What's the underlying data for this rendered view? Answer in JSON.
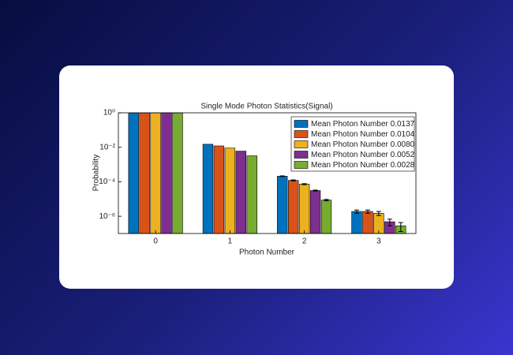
{
  "chart_data": {
    "type": "bar",
    "title": "Single Mode Photon Statistics(Signal)",
    "xlabel": "Photon Number",
    "ylabel": "Probability",
    "categories": [
      "0",
      "1",
      "2",
      "3"
    ],
    "log_y": true,
    "ylim": [
      1e-07,
      1
    ],
    "yticks": [
      {
        "value": 1,
        "label": "10⁰"
      },
      {
        "value": 0.01,
        "label": "10⁻²"
      },
      {
        "value": 0.0001,
        "label": "10⁻⁴"
      },
      {
        "value": 1e-06,
        "label": "10⁻⁶"
      }
    ],
    "legend": "upper right",
    "series": [
      {
        "name": "Mean Photon Number 0.0137",
        "color": "#0072bd",
        "values": [
          0.987,
          0.015,
          0.00021,
          1.9e-06
        ],
        "errors": [
          0,
          0,
          1e-05,
          4e-07
        ]
      },
      {
        "name": "Mean Photon Number 0.0104",
        "color": "#d95319",
        "values": [
          0.99,
          0.012,
          0.00012,
          1.9e-06
        ],
        "errors": [
          0,
          0,
          8e-06,
          4e-07
        ]
      },
      {
        "name": "Mean Photon Number 0.0080",
        "color": "#edb120",
        "values": [
          0.992,
          0.009,
          7.3e-05,
          1.5e-06
        ],
        "errors": [
          0,
          0,
          5e-06,
          4e-07
        ]
      },
      {
        "name": "Mean Photon Number 0.0052",
        "color": "#7e2f8e",
        "values": [
          0.995,
          0.006,
          3.1e-05,
          4.8e-07
        ],
        "errors": [
          0,
          0,
          2e-06,
          2e-07
        ]
      },
      {
        "name": "Mean Photon Number 0.0028",
        "color": "#77ac30",
        "values": [
          0.997,
          0.0032,
          8.7e-06,
          2.8e-07
        ],
        "errors": [
          0,
          0,
          8e-07,
          1.5e-07
        ]
      }
    ]
  }
}
